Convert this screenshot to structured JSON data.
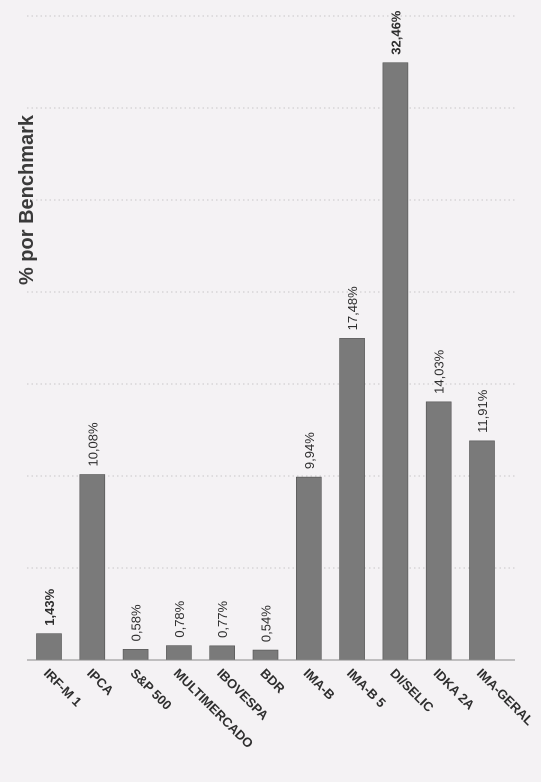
{
  "chart_data": {
    "type": "bar",
    "orientation": "vertical",
    "title": "% por Benchmark",
    "categories": [
      "IRF-M 1",
      "IPCA",
      "S&P 500",
      "MULTIMERCADO",
      "IBOVESPA",
      "BDR",
      "IMA-B",
      "IMA-B 5",
      "DI/SELIC",
      "IDKA 2A",
      "IMA-GERAL"
    ],
    "values": [
      1.43,
      10.08,
      0.58,
      0.78,
      0.77,
      0.54,
      9.94,
      17.48,
      32.46,
      14.03,
      11.91
    ],
    "value_labels": [
      "1,43%",
      "10,08%",
      "0,58%",
      "0,78%",
      "0,77%",
      "0,54%",
      "9,94%",
      "17,48%",
      "32,46%",
      "14,03%",
      "11,91%"
    ],
    "bold_labels": [
      0,
      8
    ],
    "ylim": [
      0,
      35
    ],
    "grid": true,
    "bar_color": "#7a7a7a",
    "xlabel": "",
    "ylabel": ""
  }
}
